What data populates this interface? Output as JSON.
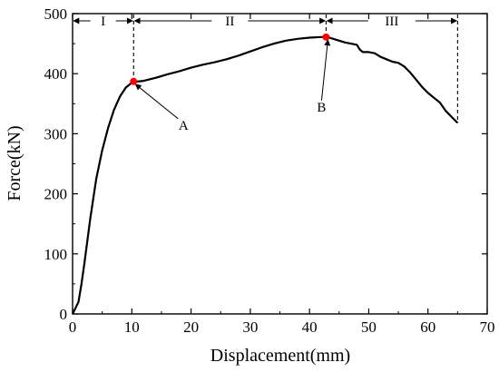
{
  "chart_data": {
    "type": "line",
    "xlabel": "Displacement(mm)",
    "ylabel": "Force(kN)",
    "xlim": [
      0,
      70
    ],
    "ylim": [
      0,
      500
    ],
    "xticks": [
      0,
      10,
      20,
      30,
      40,
      50,
      60,
      70
    ],
    "yticks": [
      0,
      100,
      200,
      300,
      400,
      500
    ],
    "grid": false,
    "series": [
      {
        "x": [
          0,
          0.5,
          1,
          1.5,
          2,
          3,
          4,
          5,
          6,
          7,
          8,
          9,
          10,
          10.3,
          11,
          12,
          14,
          16,
          18,
          20,
          22,
          24,
          26,
          28,
          30,
          32,
          34,
          36,
          38,
          40,
          42,
          43,
          44,
          45,
          46,
          47,
          48,
          48.5,
          49,
          50,
          51,
          52,
          53,
          54,
          55,
          56,
          57,
          58,
          59,
          60,
          61,
          62,
          63,
          64,
          65
        ],
        "y": [
          0,
          10,
          20,
          50,
          85,
          160,
          225,
          272,
          310,
          340,
          362,
          377,
          385,
          387,
          387,
          388,
          393,
          399,
          404,
          410,
          415,
          419,
          424,
          430,
          437,
          444,
          450,
          455,
          458,
          460,
          461,
          461,
          458,
          455,
          452,
          450,
          448,
          440,
          436,
          436,
          434,
          428,
          424,
          420,
          418,
          412,
          402,
          390,
          378,
          368,
          360,
          352,
          338,
          328,
          318
        ],
        "color": "#000000"
      }
    ],
    "points": [
      {
        "label": "A",
        "x": 10.3,
        "y": 387,
        "color": "#ff0000"
      },
      {
        "label": "B",
        "x": 42.8,
        "y": 461,
        "color": "#ff0000"
      }
    ],
    "regions": [
      {
        "label": "I",
        "x_start": 0,
        "x_end": 10.3
      },
      {
        "label": "II",
        "x_start": 10.3,
        "x_end": 42.8
      },
      {
        "label": "III",
        "x_start": 42.8,
        "x_end": 65
      }
    ],
    "region_arrow_y": 488,
    "boundary_lines_x": [
      10.3,
      42.8,
      65
    ]
  }
}
